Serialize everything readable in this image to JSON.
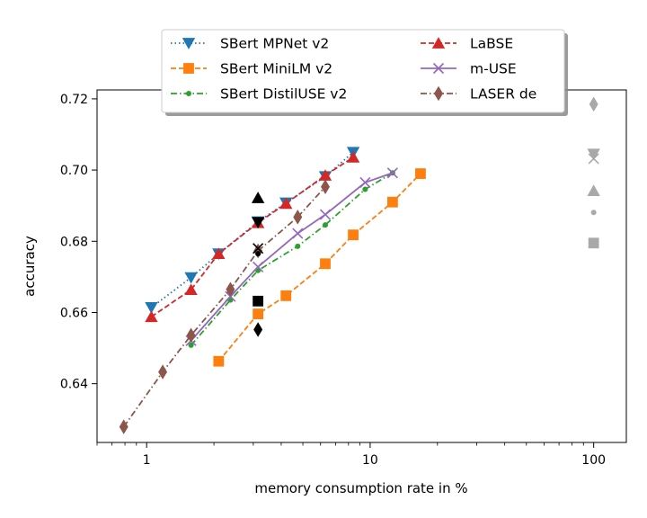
{
  "chart_data": {
    "type": "line",
    "title": "",
    "xlabel": "memory consumption rate in %",
    "ylabel": "accuracy",
    "xscale": "log",
    "xlim": [
      0.6,
      140
    ],
    "ylim": [
      0.6235,
      0.7225
    ],
    "xticks": [
      1,
      10,
      100
    ],
    "xtick_labels": [
      "1",
      "10",
      "100"
    ],
    "yticks": [
      0.64,
      0.66,
      0.68,
      0.7,
      0.72
    ],
    "ytick_labels": [
      "0.64",
      "0.66",
      "0.68",
      "0.70",
      "0.72"
    ],
    "grid": false,
    "legend_position": "top-center",
    "series": [
      {
        "name": "SBert MPNet v2",
        "color": "#1f77b4",
        "marker": "triangle-down",
        "linestyle": "dotted",
        "x": [
          1.05,
          1.58,
          2.1,
          3.15,
          4.2,
          6.3,
          8.4
        ],
        "y": [
          0.6614,
          0.6698,
          0.6765,
          0.6855,
          0.6908,
          0.6982,
          0.705
        ]
      },
      {
        "name": "SBert MiniLM v2",
        "color": "#ff7f0e",
        "marker": "square",
        "linestyle": "dashed",
        "x": [
          2.1,
          3.15,
          4.2,
          6.3,
          8.4,
          12.6,
          16.8
        ],
        "y": [
          0.6463,
          0.6596,
          0.6647,
          0.6737,
          0.6818,
          0.691,
          0.699
        ]
      },
      {
        "name": "SBert DistilUSE v2",
        "color": "#2ca02c",
        "marker": "point",
        "linestyle": "dashdot",
        "x": [
          1.58,
          2.37,
          3.15,
          4.74,
          6.3,
          9.5,
          12.6
        ],
        "y": [
          0.6508,
          0.6635,
          0.6718,
          0.6786,
          0.6846,
          0.6946,
          0.6992
        ]
      },
      {
        "name": "LaBSE",
        "color": "#d62728",
        "marker": "triangle-up",
        "linestyle": "dashed",
        "x": [
          1.05,
          1.58,
          2.1,
          3.15,
          4.2,
          6.3,
          8.4
        ],
        "y": [
          0.6588,
          0.6664,
          0.6765,
          0.6852,
          0.6906,
          0.6985,
          0.7036
        ]
      },
      {
        "name": "m-USE",
        "color": "#9467bd",
        "marker": "x",
        "linestyle": "solid",
        "x": [
          1.58,
          2.37,
          3.15,
          4.74,
          6.3,
          9.5,
          12.6
        ],
        "y": [
          0.6521,
          0.6645,
          0.6728,
          0.6822,
          0.6875,
          0.6965,
          0.6992
        ]
      },
      {
        "name": "LASER de",
        "color": "#8c564b",
        "marker": "thin-diamond",
        "linestyle": "dashdot",
        "x": [
          0.79,
          1.18,
          1.58,
          2.37,
          3.15,
          4.74,
          6.3
        ],
        "y": [
          0.6279,
          0.6433,
          0.6536,
          0.6665,
          0.6773,
          0.6868,
          0.6953
        ]
      }
    ],
    "reference_points_100pct": [
      {
        "series": "SBert MPNet v2",
        "x": 100,
        "y": 0.7045,
        "marker": "triangle-down",
        "color": "#a9a9a9"
      },
      {
        "series": "SBert MiniLM v2",
        "x": 100,
        "y": 0.6795,
        "marker": "square",
        "color": "#a9a9a9"
      },
      {
        "series": "SBert DistilUSE v2",
        "x": 100,
        "y": 0.6881,
        "marker": "point",
        "color": "#a9a9a9"
      },
      {
        "series": "LaBSE",
        "x": 100,
        "y": 0.6942,
        "marker": "triangle-up",
        "color": "#a9a9a9"
      },
      {
        "series": "m-USE",
        "x": 100,
        "y": 0.7032,
        "marker": "x",
        "color": "#a9a9a9"
      },
      {
        "series": "LASER de",
        "x": 100,
        "y": 0.7185,
        "marker": "thin-diamond",
        "color": "#a9a9a9"
      }
    ],
    "black_points_3pct": [
      {
        "series": "SBert MPNet v2",
        "x": 3.15,
        "y": 0.6853,
        "marker": "triangle-down",
        "color": "#000000"
      },
      {
        "series": "SBert MiniLM v2",
        "x": 3.15,
        "y": 0.6632,
        "marker": "square",
        "color": "#000000"
      },
      {
        "series": "SBert DistilUSE v2",
        "x": 3.15,
        "y": 0.6765,
        "marker": "point",
        "color": "#000000"
      },
      {
        "series": "LaBSE",
        "x": 3.15,
        "y": 0.6922,
        "marker": "triangle-up",
        "color": "#000000"
      },
      {
        "series": "m-USE",
        "x": 3.15,
        "y": 0.678,
        "marker": "x",
        "color": "#000000"
      },
      {
        "series": "LASER de",
        "x": 3.15,
        "y": 0.6552,
        "marker": "thin-diamond",
        "color": "#000000"
      }
    ]
  }
}
